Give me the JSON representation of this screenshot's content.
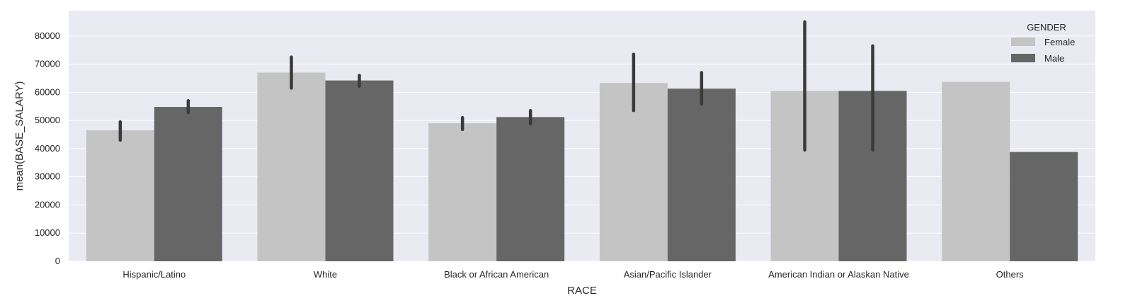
{
  "chart_data": {
    "type": "bar",
    "title": "",
    "xlabel": "RACE",
    "ylabel": "mean(BASE_SALARY)",
    "ylim": [
      0,
      89000
    ],
    "yticks": [
      0,
      10000,
      20000,
      30000,
      40000,
      50000,
      60000,
      70000,
      80000
    ],
    "grid": true,
    "legend_position": "top-right",
    "legend_title": "GENDER",
    "categories": [
      "Hispanic/Latino",
      "White",
      "Black or African American",
      "Asian/Pacific Islander",
      "American Indian or Alaskan Native",
      "Others"
    ],
    "series": [
      {
        "name": "Female",
        "color": "#c4c4c4",
        "values": [
          46500,
          67000,
          49000,
          63300,
          60500,
          63700
        ],
        "ci_low": [
          43000,
          61500,
          46800,
          53500,
          39500,
          null
        ],
        "ci_high": [
          49500,
          72500,
          51000,
          73500,
          85000,
          null
        ]
      },
      {
        "name": "Male",
        "color": "#666666",
        "values": [
          54800,
          64200,
          51200,
          61300,
          60500,
          38800
        ],
        "ci_low": [
          52800,
          62200,
          48800,
          55800,
          39500,
          null
        ],
        "ci_high": [
          57000,
          66000,
          53500,
          67000,
          76500,
          null
        ]
      }
    ],
    "colors": {
      "plot_background": "#eaeaf2",
      "gridline": "#ffffff",
      "error_bar": "#3a3a3a"
    }
  }
}
